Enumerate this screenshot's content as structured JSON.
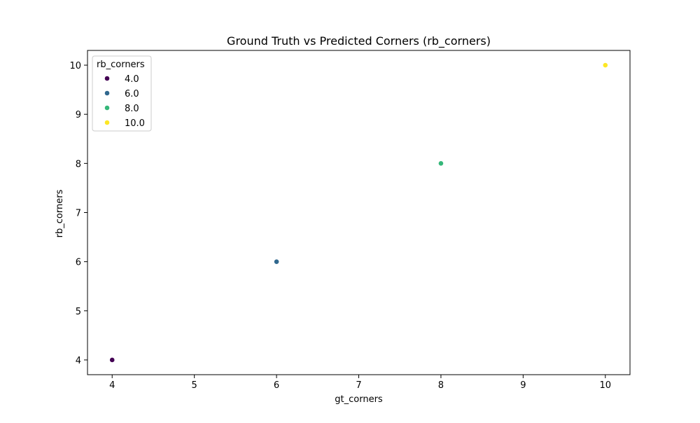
{
  "chart_data": {
    "type": "scatter",
    "title": "Ground Truth vs Predicted Corners (rb_corners)",
    "xlabel": "gt_corners",
    "ylabel": "rb_corners",
    "xlim": [
      3.7,
      10.3
    ],
    "ylim": [
      3.7,
      10.3
    ],
    "xticks": [
      4,
      5,
      6,
      7,
      8,
      9,
      10
    ],
    "yticks": [
      4,
      5,
      6,
      7,
      8,
      9,
      10
    ],
    "grid": false,
    "legend": {
      "title": "rb_corners",
      "position": "upper-left",
      "entries": [
        {
          "label": "4.0",
          "color": "#440154"
        },
        {
          "label": "6.0",
          "color": "#31688e"
        },
        {
          "label": "8.0",
          "color": "#35b779"
        },
        {
          "label": "10.0",
          "color": "#fde725"
        }
      ]
    },
    "points": [
      {
        "x": 4,
        "y": 4,
        "hue": 4.0,
        "color": "#440154"
      },
      {
        "x": 6,
        "y": 6,
        "hue": 6.0,
        "color": "#31688e"
      },
      {
        "x": 8,
        "y": 8,
        "hue": 8.0,
        "color": "#35b779"
      },
      {
        "x": 10,
        "y": 10,
        "hue": 10.0,
        "color": "#fde725"
      }
    ]
  }
}
